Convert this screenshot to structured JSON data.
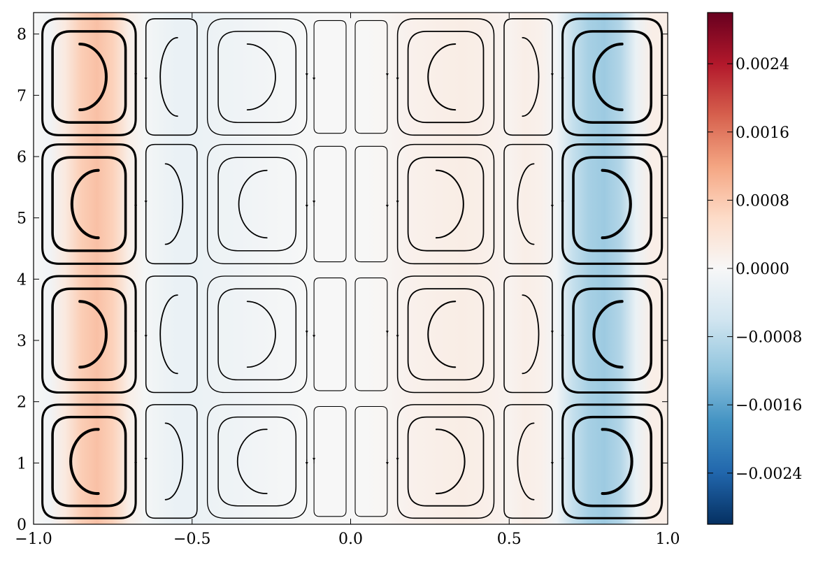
{
  "chart_data": {
    "type": "heatmap",
    "subtype": "streamplot-over-field",
    "title": "",
    "xlabel": "",
    "ylabel": "",
    "xlim": [
      -1.0,
      1.0
    ],
    "ylim": [
      0,
      8.35
    ],
    "x_ticks": [
      -1.0,
      -0.5,
      0.0,
      0.5,
      1.0
    ],
    "x_tick_labels": [
      "−1.0",
      "−0.5",
      "0.0",
      "0.5",
      "1.0"
    ],
    "y_ticks": [
      0,
      1,
      2,
      3,
      4,
      5,
      6,
      7,
      8
    ],
    "y_tick_labels": [
      "0",
      "1",
      "2",
      "3",
      "4",
      "5",
      "6",
      "7",
      "8"
    ],
    "grid": false,
    "colormap": "RdBu_r",
    "colorbar": {
      "vmin": -0.003,
      "vmax": 0.003,
      "ticks": [
        0.0024,
        0.0016,
        0.0008,
        0.0,
        -0.0008,
        -0.0016,
        -0.0024
      ],
      "tick_labels": [
        "0.0024",
        "0.0016",
        "0.0008",
        "0.0000",
        "−0.0008",
        "−0.0016",
        "−0.0024"
      ]
    },
    "field_profile": {
      "x": [
        -1.0,
        -0.95,
        -0.9,
        -0.85,
        -0.8,
        -0.75,
        -0.7,
        -0.65,
        -0.6,
        -0.55,
        -0.5,
        -0.45,
        -0.4,
        -0.35,
        -0.3,
        -0.25,
        -0.2,
        -0.15,
        -0.1,
        -0.05,
        0.0,
        0.05,
        0.1,
        0.15,
        0.2,
        0.25,
        0.3,
        0.35,
        0.4,
        0.45,
        0.5,
        0.55,
        0.6,
        0.65,
        0.7,
        0.75,
        0.8,
        0.85,
        0.9,
        0.95,
        1.0
      ],
      "value": [
        0.0,
        -0.0001,
        0.0003,
        0.00075,
        0.0009,
        0.0007,
        0.0002,
        -5e-05,
        -0.00015,
        -0.0002,
        -0.0002,
        -0.00018,
        -0.00015,
        -0.00012,
        -0.0001,
        -7e-05,
        -4e-05,
        -1e-05,
        0.0,
        0.0,
        0.0,
        1e-05,
        5e-05,
        0.0001,
        0.00015,
        0.00018,
        0.0002,
        0.00022,
        0.0002,
        0.00015,
        0.0001,
        0.0002,
        0.00015,
        -0.0001,
        -0.0007,
        -0.001,
        -0.0011,
        -0.0009,
        -0.0002,
        0.0002,
        0.0002
      ]
    },
    "cells": {
      "columns": [
        {
          "x_range": [
            -0.98,
            -0.67
          ],
          "rings": 3
        },
        {
          "x_range": [
            -0.65,
            -0.48
          ],
          "rings": 2
        },
        {
          "x_range": [
            -0.46,
            -0.13
          ],
          "rings": 3
        },
        {
          "x_range": [
            -0.12,
            -0.01
          ],
          "rings": 1
        },
        {
          "x_range": [
            0.01,
            0.12
          ],
          "rings": 1
        },
        {
          "x_range": [
            0.14,
            0.46
          ],
          "rings": 3
        },
        {
          "x_range": [
            0.48,
            0.64
          ],
          "rings": 2
        },
        {
          "x_range": [
            0.66,
            0.99
          ],
          "rings": 3
        }
      ],
      "rows": [
        {
          "y_range": [
            0.05,
            2.0
          ]
        },
        {
          "y_range": [
            2.1,
            4.1
          ]
        },
        {
          "y_range": [
            4.2,
            6.25
          ]
        },
        {
          "y_range": [
            6.3,
            8.3
          ]
        }
      ]
    }
  }
}
